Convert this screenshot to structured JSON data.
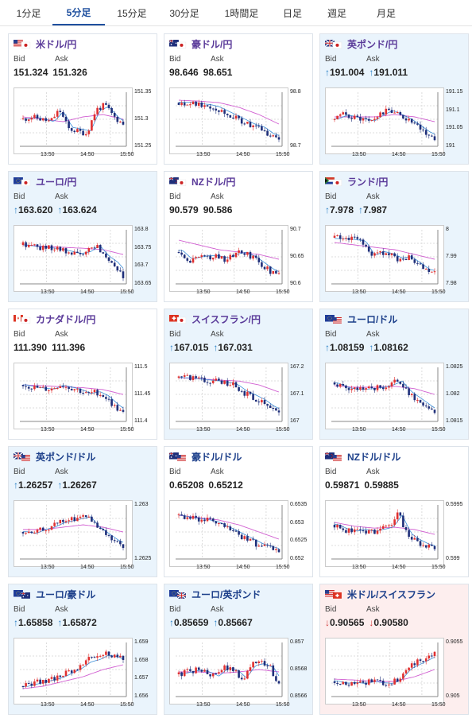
{
  "tabs": [
    "1分足",
    "5分足",
    "15分足",
    "30分足",
    "1時間足",
    "日足",
    "週足",
    "月足"
  ],
  "active_tab": 1,
  "labels": {
    "bid": "Bid",
    "ask": "Ask"
  },
  "x_ticks": [
    "13:50",
    "14:50",
    "15:50"
  ],
  "pairs": [
    {
      "name": "米ドル/円",
      "style": "purple",
      "bg": "white",
      "arrow": "",
      "bid": "151.324",
      "ask": "151.326",
      "flag": "us",
      "yticks": [
        "151.35",
        "151.3",
        "151.25"
      ],
      "seed": 11,
      "trend": [
        0.5,
        0.55,
        0.5,
        0.45,
        0.7,
        0.3,
        0.25,
        0.2,
        0.7,
        0.8,
        0.55,
        0.4
      ],
      "ma": [
        0.55,
        0.5,
        0.45,
        0.55,
        0.6,
        0.5
      ]
    },
    {
      "name": "豪ドル/円",
      "style": "purple",
      "bg": "white",
      "arrow": "",
      "bid": "98.646",
      "ask": "98.651",
      "flag": "au",
      "yticks": [
        "98.8",
        "98.7"
      ],
      "seed": 22,
      "trend": [
        0.85,
        0.85,
        0.82,
        0.8,
        0.75,
        0.65,
        0.55,
        0.45,
        0.35,
        0.3,
        0.15,
        0.1
      ],
      "ma": [
        0.9,
        0.88,
        0.85,
        0.75,
        0.6,
        0.4
      ]
    },
    {
      "name": "英ポンド/円",
      "style": "purple",
      "bg": "blue",
      "arrow": "up",
      "bid": "191.004",
      "ask": "191.011",
      "flag": "gb",
      "yticks": [
        "191.15",
        "191.1",
        "191.05",
        "191"
      ],
      "seed": 33,
      "trend": [
        0.5,
        0.6,
        0.55,
        0.5,
        0.45,
        0.6,
        0.7,
        0.6,
        0.5,
        0.35,
        0.2,
        0.1
      ],
      "ma": [
        0.55,
        0.55,
        0.55,
        0.6,
        0.55,
        0.45
      ]
    },
    {
      "name": "ユーロ/円",
      "style": "purple",
      "bg": "blue",
      "arrow": "up",
      "bid": "163.620",
      "ask": "163.624",
      "flag": "eu",
      "yticks": [
        "163.8",
        "163.75",
        "163.7",
        "163.65"
      ],
      "seed": 44,
      "trend": [
        0.75,
        0.72,
        0.7,
        0.68,
        0.65,
        0.6,
        0.55,
        0.6,
        0.75,
        0.5,
        0.35,
        0.1
      ],
      "ma": [
        0.75,
        0.72,
        0.7,
        0.68,
        0.65,
        0.55
      ]
    },
    {
      "name": "NZドル/円",
      "style": "purple",
      "bg": "white",
      "arrow": "",
      "bid": "90.579",
      "ask": "90.586",
      "flag": "nz",
      "yticks": [
        "90.7",
        "90.65",
        "90.6"
      ],
      "seed": 55,
      "trend": [
        0.6,
        0.4,
        0.45,
        0.5,
        0.5,
        0.45,
        0.55,
        0.6,
        0.5,
        0.35,
        0.2,
        0.1
      ],
      "ma": [
        0.85,
        0.75,
        0.65,
        0.6,
        0.55,
        0.45
      ]
    },
    {
      "name": "ランド/円",
      "style": "purple",
      "bg": "blue",
      "arrow": "up",
      "bid": "7.978",
      "ask": "7.987",
      "flag": "za",
      "yticks": [
        "8",
        "7.99",
        "7.98"
      ],
      "seed": 66,
      "trend": [
        0.9,
        0.9,
        0.88,
        0.85,
        0.5,
        0.6,
        0.55,
        0.45,
        0.5,
        0.35,
        0.2,
        0.15
      ],
      "ma": [
        0.8,
        0.75,
        0.7,
        0.65,
        0.55,
        0.45
      ]
    },
    {
      "name": "カナダドル/円",
      "style": "purple",
      "bg": "white",
      "arrow": "",
      "bid": "111.390",
      "ask": "111.396",
      "flag": "ca",
      "yticks": [
        "111.5",
        "111.45",
        "111.4"
      ],
      "seed": 77,
      "trend": [
        0.7,
        0.65,
        0.62,
        0.6,
        0.7,
        0.65,
        0.6,
        0.5,
        0.55,
        0.45,
        0.25,
        0.1
      ],
      "ma": [
        0.7,
        0.68,
        0.66,
        0.64,
        0.6,
        0.5
      ]
    },
    {
      "name": "スイスフラン/円",
      "style": "purple",
      "bg": "blue",
      "arrow": "up",
      "bid": "167.015",
      "ask": "167.031",
      "flag": "ch",
      "yticks": [
        "167.2",
        "167.1",
        "167"
      ],
      "seed": 88,
      "trend": [
        0.85,
        0.85,
        0.82,
        0.8,
        0.78,
        0.75,
        0.7,
        0.55,
        0.45,
        0.35,
        0.2,
        0.1
      ],
      "ma": [
        0.85,
        0.83,
        0.8,
        0.78,
        0.7,
        0.55
      ]
    },
    {
      "name": "ユーロ/ドル",
      "style": "blue",
      "bg": "blue",
      "arrow": "up",
      "bid": "1.08159",
      "ask": "1.08162",
      "flag": "euus",
      "yticks": [
        "1.0825",
        "1.082",
        "1.0815"
      ],
      "seed": 99,
      "trend": [
        0.75,
        0.65,
        0.6,
        0.6,
        0.62,
        0.65,
        0.7,
        0.8,
        0.55,
        0.4,
        0.25,
        0.1
      ],
      "ma": [
        0.68,
        0.65,
        0.65,
        0.67,
        0.62,
        0.5
      ]
    },
    {
      "name": "英ポンド/ドル",
      "style": "blue",
      "bg": "blue",
      "arrow": "up",
      "bid": "1.26257",
      "ask": "1.26267",
      "flag": "gbus",
      "yticks": [
        "1.263",
        "1.2625"
      ],
      "seed": 101,
      "trend": [
        0.5,
        0.45,
        0.55,
        0.6,
        0.7,
        0.75,
        0.8,
        0.85,
        0.6,
        0.45,
        0.3,
        0.2
      ],
      "ma": [
        0.55,
        0.55,
        0.6,
        0.65,
        0.6,
        0.5
      ]
    },
    {
      "name": "豪ドル/ドル",
      "style": "blue",
      "bg": "white",
      "arrow": "",
      "bid": "0.65208",
      "ask": "0.65212",
      "flag": "auus",
      "yticks": [
        "0.6535",
        "0.653",
        "0.6525",
        "0.652"
      ],
      "seed": 111,
      "trend": [
        0.85,
        0.8,
        0.78,
        0.75,
        0.7,
        0.6,
        0.5,
        0.4,
        0.3,
        0.2,
        0.15,
        0.1
      ],
      "ma": [
        0.85,
        0.8,
        0.75,
        0.65,
        0.5,
        0.35
      ]
    },
    {
      "name": "NZドル/ドル",
      "style": "blue",
      "bg": "white",
      "arrow": "",
      "bid": "0.59871",
      "ask": "0.59885",
      "flag": "nzus",
      "yticks": [
        "0.5995",
        "0.599"
      ],
      "seed": 121,
      "trend": [
        0.65,
        0.55,
        0.5,
        0.55,
        0.5,
        0.55,
        0.6,
        0.9,
        0.45,
        0.3,
        0.2,
        0.15
      ],
      "ma": [
        0.7,
        0.62,
        0.58,
        0.6,
        0.55,
        0.45
      ]
    },
    {
      "name": "ユーロ/豪ドル",
      "style": "blue",
      "bg": "blue",
      "arrow": "up",
      "bid": "1.65858",
      "ask": "1.65872",
      "flag": "euau",
      "yticks": [
        "1.659",
        "1.658",
        "1.657",
        "1.656"
      ],
      "seed": 131,
      "trend": [
        0.15,
        0.2,
        0.25,
        0.3,
        0.35,
        0.45,
        0.55,
        0.7,
        0.75,
        0.85,
        0.8,
        0.7
      ],
      "ma": [
        0.1,
        0.15,
        0.25,
        0.35,
        0.5,
        0.6
      ]
    },
    {
      "name": "ユーロ/英ポンド",
      "style": "blue",
      "bg": "blue",
      "arrow": "up",
      "bid": "0.85659",
      "ask": "0.85667",
      "flag": "eugb",
      "yticks": [
        "0.857",
        "0.8568",
        "0.8566"
      ],
      "seed": 141,
      "trend": [
        0.4,
        0.45,
        0.5,
        0.45,
        0.35,
        0.55,
        0.5,
        0.3,
        0.6,
        0.65,
        0.55,
        0.2
      ],
      "ma": [
        0.45,
        0.45,
        0.42,
        0.45,
        0.5,
        0.45
      ]
    },
    {
      "name": "米ドル/スイスフラン",
      "style": "blue",
      "bg": "pink",
      "arrow": "down",
      "bid": "0.90565",
      "ask": "0.90580",
      "flag": "usch",
      "yticks": [
        "0.9055",
        "0.905"
      ],
      "seed": 151,
      "trend": [
        0.25,
        0.2,
        0.22,
        0.2,
        0.25,
        0.22,
        0.2,
        0.3,
        0.55,
        0.65,
        0.75,
        0.85
      ],
      "ma": [
        0.3,
        0.28,
        0.25,
        0.25,
        0.35,
        0.5
      ]
    }
  ]
}
